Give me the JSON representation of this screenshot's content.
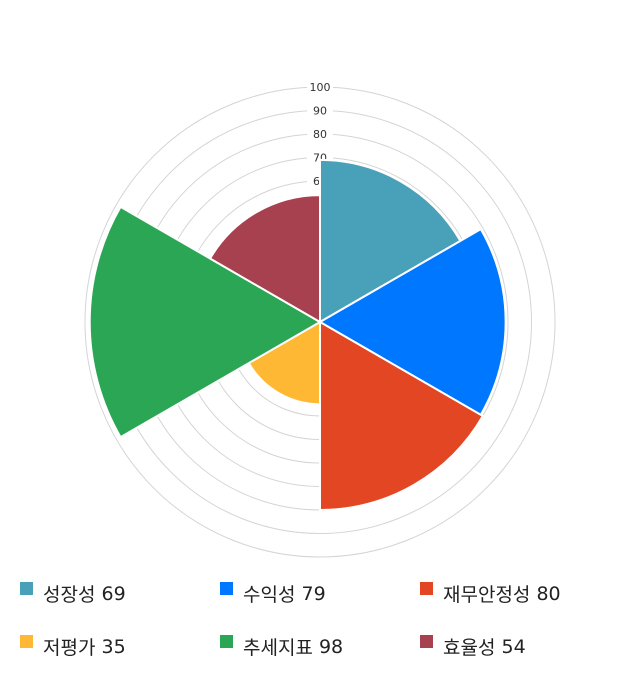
{
  "chart_data": {
    "type": "polar-area",
    "title": "",
    "r_range": [
      0,
      100
    ],
    "r_ticks": [
      10,
      20,
      30,
      40,
      50,
      60,
      70,
      80,
      90,
      100
    ],
    "grid": true,
    "legend_position": "bottom",
    "categories": [
      "성장성",
      "수익성",
      "재무안정성",
      "저평가",
      "추세지표",
      "효율성"
    ],
    "values": [
      69,
      79,
      80,
      35,
      98,
      54
    ],
    "colors": [
      "#48a1b9",
      "#0077ff",
      "#e34622",
      "#ffb833",
      "#2aa655",
      "#a8414f"
    ]
  }
}
